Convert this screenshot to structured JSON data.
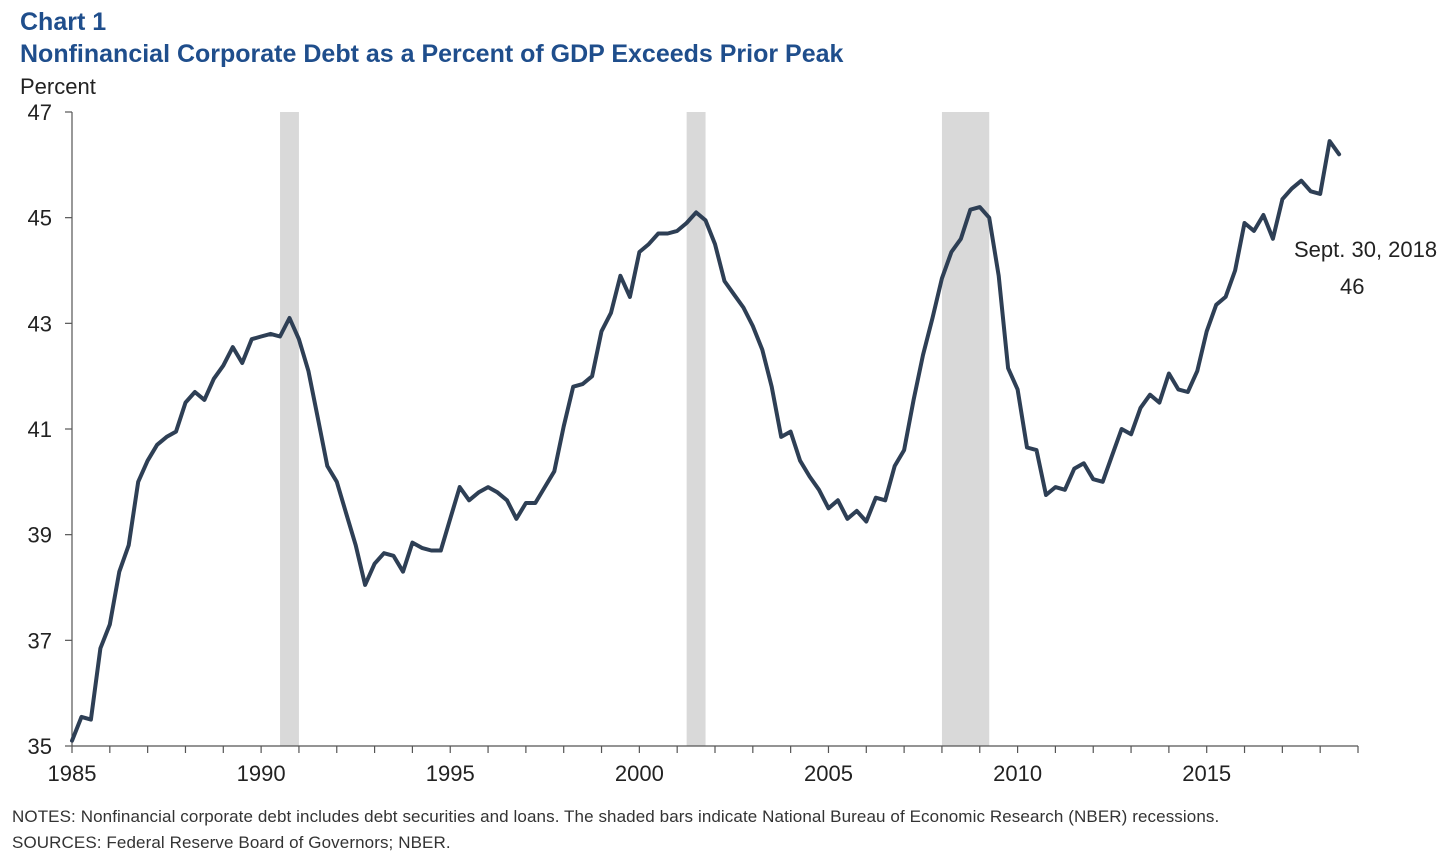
{
  "header": {
    "chart_label": "Chart 1",
    "title": "Nonfinancial Corporate Debt as a Percent of GDP Exceeds Prior Peak",
    "y_unit": "Percent"
  },
  "annotation": {
    "date": "Sept. 30, 2018",
    "value": "46"
  },
  "footer": {
    "notes": "NOTES: Nonfinancial corporate debt includes debt securities and loans. The shaded bars indicate National Bureau of Economic Research (NBER) recessions.",
    "sources": "SOURCES: Federal Reserve Board of Governors; NBER."
  },
  "colors": {
    "line": "#2e3f55",
    "recession": "#d9d9d9",
    "title": "#1f4e8c",
    "axis": "#555555"
  },
  "chart_data": {
    "type": "line",
    "title": "Nonfinancial Corporate Debt as a Percent of GDP Exceeds Prior Peak",
    "ylabel": "Percent",
    "xlabel": "",
    "xlim": [
      1985,
      2019
    ],
    "ylim": [
      35,
      47
    ],
    "yticks": [
      35,
      37,
      39,
      41,
      43,
      45,
      47
    ],
    "xticks": [
      1985,
      1990,
      1995,
      2000,
      2005,
      2010,
      2015
    ],
    "grid": false,
    "recessions": [
      [
        1990.5,
        1991.0
      ],
      [
        2001.25,
        2001.75
      ],
      [
        2008.0,
        2009.25
      ]
    ],
    "series": [
      {
        "name": "",
        "x": [
          1985.0,
          1985.25,
          1985.5,
          1985.75,
          1986.0,
          1986.25,
          1986.5,
          1986.75,
          1987.0,
          1987.25,
          1987.5,
          1987.75,
          1988.0,
          1988.25,
          1988.5,
          1988.75,
          1989.0,
          1989.25,
          1989.5,
          1989.75,
          1990.0,
          1990.25,
          1990.5,
          1990.75,
          1991.0,
          1991.25,
          1991.5,
          1991.75,
          1992.0,
          1992.25,
          1992.5,
          1992.75,
          1993.0,
          1993.25,
          1993.5,
          1993.75,
          1994.0,
          1994.25,
          1994.5,
          1994.75,
          1995.0,
          1995.25,
          1995.5,
          1995.75,
          1996.0,
          1996.25,
          1996.5,
          1996.75,
          1997.0,
          1997.25,
          1997.5,
          1997.75,
          1998.0,
          1998.25,
          1998.5,
          1998.75,
          1999.0,
          1999.25,
          1999.5,
          1999.75,
          2000.0,
          2000.25,
          2000.5,
          2000.75,
          2001.0,
          2001.25,
          2001.5,
          2001.75,
          2002.0,
          2002.25,
          2002.5,
          2002.75,
          2003.0,
          2003.25,
          2003.5,
          2003.75,
          2004.0,
          2004.25,
          2004.5,
          2004.75,
          2005.0,
          2005.25,
          2005.5,
          2005.75,
          2006.0,
          2006.25,
          2006.5,
          2006.75,
          2007.0,
          2007.25,
          2007.5,
          2007.75,
          2008.0,
          2008.25,
          2008.5,
          2008.75,
          2009.0,
          2009.25,
          2009.5,
          2009.75,
          2010.0,
          2010.25,
          2010.5,
          2010.75,
          2011.0,
          2011.25,
          2011.5,
          2011.75,
          2012.0,
          2012.25,
          2012.5,
          2012.75,
          2013.0,
          2013.25,
          2013.5,
          2013.75,
          2014.0,
          2014.25,
          2014.5,
          2014.75,
          2015.0,
          2015.25,
          2015.5,
          2015.75,
          2016.0,
          2016.25,
          2016.5,
          2016.75,
          2017.0,
          2017.25,
          2017.5,
          2017.75,
          2018.0,
          2018.25,
          2018.5
        ],
        "values": [
          35.1,
          35.55,
          35.5,
          36.85,
          37.3,
          38.3,
          38.8,
          40.0,
          40.4,
          40.7,
          40.85,
          40.95,
          41.5,
          41.7,
          41.55,
          41.95,
          42.2,
          42.55,
          42.25,
          42.7,
          42.75,
          42.8,
          42.75,
          43.1,
          42.7,
          42.1,
          41.2,
          40.3,
          40.0,
          39.4,
          38.8,
          38.05,
          38.45,
          38.65,
          38.6,
          38.3,
          38.85,
          38.75,
          38.7,
          38.7,
          39.3,
          39.9,
          39.65,
          39.8,
          39.9,
          39.8,
          39.65,
          39.3,
          39.6,
          39.6,
          39.9,
          40.2,
          41.05,
          41.8,
          41.85,
          42.0,
          42.85,
          43.2,
          43.9,
          43.5,
          44.35,
          44.5,
          44.7,
          44.7,
          44.75,
          44.9,
          45.1,
          44.95,
          44.5,
          43.8,
          43.55,
          43.3,
          42.95,
          42.5,
          41.8,
          40.85,
          40.95,
          40.4,
          40.1,
          39.85,
          39.5,
          39.65,
          39.3,
          39.45,
          39.25,
          39.7,
          39.65,
          40.3,
          40.6,
          41.55,
          42.4,
          43.1,
          43.85,
          44.35,
          44.6,
          45.15,
          45.2,
          45.0,
          43.9,
          42.15,
          41.75,
          40.65,
          40.6,
          39.75,
          39.9,
          39.85,
          40.25,
          40.35,
          40.05,
          40.0,
          40.5,
          41.0,
          40.9,
          41.4,
          41.65,
          41.5,
          42.05,
          41.75,
          41.7,
          42.1,
          42.85,
          43.35,
          43.5,
          44.0,
          44.9,
          44.75,
          45.05,
          44.6,
          45.35,
          45.55,
          45.7,
          45.5,
          45.45,
          46.45,
          46.2
        ]
      }
    ]
  }
}
